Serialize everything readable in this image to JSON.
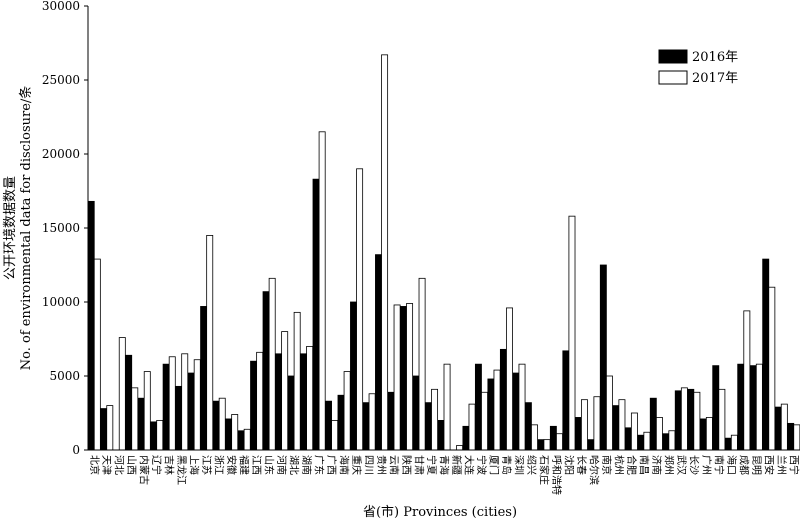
{
  "chart_data": {
    "type": "bar",
    "xlabel": "省(市) Provinces (cities)",
    "ylabel_cn": "公开环境数据数量",
    "ylabel_en": "No. of environmental data for disclosure/条",
    "ylim": [
      0,
      30000
    ],
    "yticks": [
      0,
      5000,
      10000,
      15000,
      20000,
      25000,
      30000
    ],
    "legend_position": "top-right",
    "grid": false,
    "colors": {
      "2016年": "#000000",
      "2017年": "#ffffff",
      "stroke": "#000000"
    },
    "categories": [
      "北京",
      "天津",
      "河北",
      "山西",
      "内蒙古",
      "辽宁",
      "吉林",
      "黑龙江",
      "上海",
      "江苏",
      "浙江",
      "安徽",
      "福建",
      "江西",
      "山东",
      "河南",
      "湖北",
      "湖南",
      "广东",
      "广西",
      "海南",
      "重庆",
      "四川",
      "贵州",
      "云南",
      "陕西",
      "甘肃",
      "宁夏",
      "青海",
      "新疆",
      "大连",
      "宁波",
      "厦门",
      "青岛",
      "深圳",
      "绍兴",
      "石家庄",
      "呼和浩特",
      "沈阳",
      "长春",
      "哈尔滨",
      "南京",
      "杭州",
      "合肥",
      "南昌",
      "济南",
      "郑州",
      "武汉",
      "长沙",
      "广州",
      "南宁",
      "海口",
      "成都",
      "昆明",
      "西安",
      "兰州",
      "西宁"
    ],
    "series": [
      {
        "name": "2016年",
        "values": [
          16800,
          2800,
          0,
          6400,
          3500,
          1900,
          5800,
          4300,
          5200,
          9700,
          3300,
          2100,
          1300,
          6000,
          10700,
          6500,
          5000,
          6500,
          18300,
          3300,
          3700,
          10000,
          3200,
          13200,
          3900,
          9700,
          5000,
          3200,
          2000,
          0,
          1600,
          5800,
          4800,
          6800,
          5200,
          3200,
          700,
          1600,
          6700,
          2200,
          700,
          12500,
          3000,
          1500,
          1000,
          3500,
          1100,
          4000,
          4100,
          2100,
          5700,
          800,
          5800,
          5700,
          12900,
          2900,
          1800
        ]
      },
      {
        "name": "2017年",
        "values": [
          12900,
          3000,
          7600,
          4200,
          5300,
          2000,
          6300,
          6500,
          6100,
          14500,
          3500,
          2400,
          1400,
          6600,
          11600,
          8000,
          9300,
          7000,
          21500,
          2000,
          5300,
          19000,
          3800,
          26700,
          9800,
          9900,
          11600,
          4100,
          5800,
          300,
          3100,
          3900,
          5400,
          9600,
          5800,
          1700,
          700,
          1100,
          15800,
          3400,
          3600,
          5000,
          3400,
          2500,
          1200,
          2200,
          1300,
          4200,
          3900,
          2200,
          4100,
          1000,
          9400,
          5800,
          11000,
          3100,
          1700
        ]
      }
    ]
  }
}
